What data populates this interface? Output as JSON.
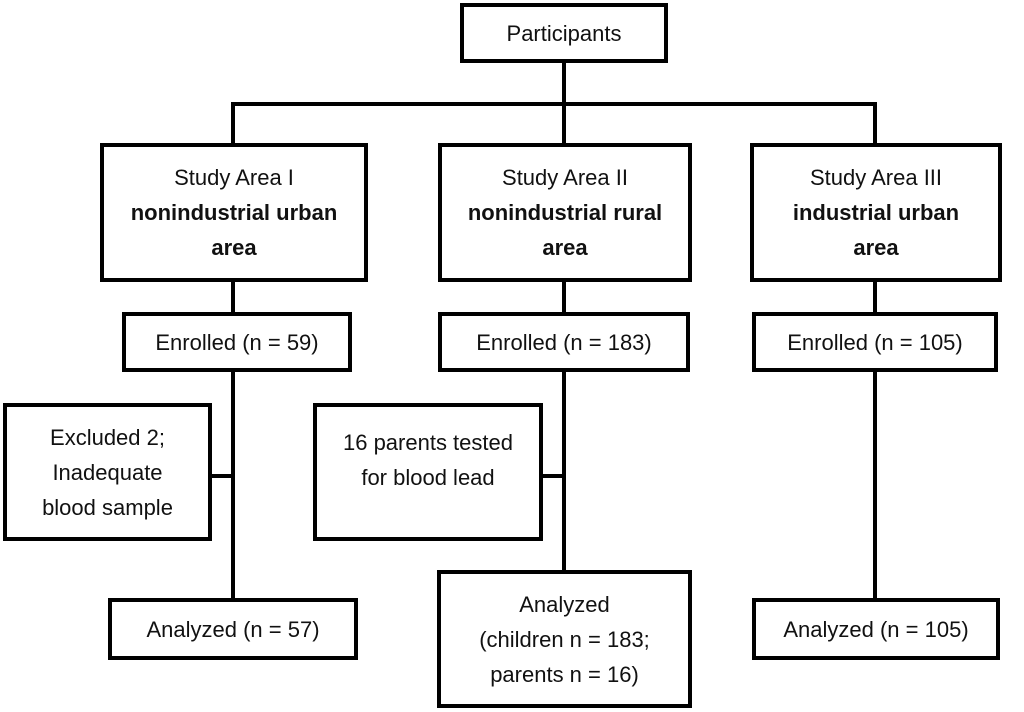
{
  "diagram_type": "participant-flow-diagram",
  "colors": {
    "line": "#000000",
    "border": "#000000",
    "background": "#ffffff",
    "text": "#111111"
  },
  "root_box": {
    "label": "Participants"
  },
  "columns": [
    {
      "study_box": {
        "title": "Study Area I",
        "subtitle_lines": [
          "nonindustrial urban",
          "area"
        ]
      },
      "enrolled_box": {
        "label": "Enrolled (n = 59)"
      },
      "side_box": {
        "lines": [
          "Excluded 2;",
          "Inadequate",
          "blood sample"
        ]
      },
      "analyzed_box": {
        "lines": [
          "Analyzed (n = 57)"
        ]
      }
    },
    {
      "study_box": {
        "title": "Study Area II",
        "subtitle_lines": [
          "nonindustrial rural",
          "area"
        ]
      },
      "enrolled_box": {
        "label": "Enrolled (n = 183)"
      },
      "side_box": {
        "lines": [
          "16 parents tested",
          "for blood lead"
        ]
      },
      "analyzed_box": {
        "lines": [
          "Analyzed",
          "(children n = 183;",
          "parents n = 16)"
        ]
      }
    },
    {
      "study_box": {
        "title": "Study Area III",
        "subtitle_lines": [
          "industrial urban",
          "area"
        ]
      },
      "enrolled_box": {
        "label": "Enrolled (n = 105)"
      },
      "analyzed_box": {
        "lines": [
          "Analyzed (n = 105)"
        ]
      }
    }
  ]
}
